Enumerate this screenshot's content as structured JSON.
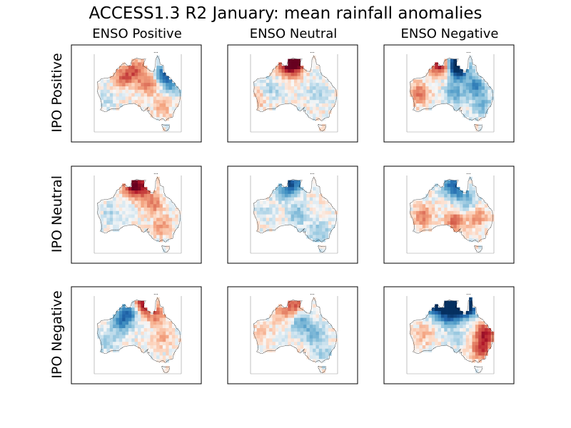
{
  "chart_data": {
    "type": "heatmap",
    "title": "ACCESS1.3 R2 January: mean rainfall anomalies",
    "column_titles": [
      "ENSO Positive",
      "ENSO Neutral",
      "ENSO Negative"
    ],
    "row_titles": [
      "IPO Positive",
      "IPO Neutral",
      "IPO Negative"
    ],
    "colormap": "RdBu",
    "colors": {
      "dry": "#b2182b",
      "wet": "#2166ac",
      "neutral": "#f7f7f7"
    },
    "panels": [
      {
        "row": "IPO Positive",
        "col": "ENSO Positive",
        "pattern": "dry interior, wet north-east Queensland coast",
        "hotspots": [
          {
            "lon": 132,
            "lat": -17,
            "v": -0.5
          },
          {
            "lon": 126,
            "lat": -20,
            "v": -0.45
          },
          {
            "lon": 138,
            "lat": -23,
            "v": -0.4
          },
          {
            "lon": 146,
            "lat": -18,
            "v": 0.7
          },
          {
            "lon": 150,
            "lat": -23,
            "v": 0.45
          },
          {
            "lon": 118,
            "lat": -30,
            "v": 0.1
          },
          {
            "lon": 145,
            "lat": -33,
            "v": -0.2
          }
        ]
      },
      {
        "row": "IPO Positive",
        "col": "ENSO Neutral",
        "pattern": "strong dry Top End, weak elsewhere",
        "hotspots": [
          {
            "lon": 131,
            "lat": -12.5,
            "v": -0.9
          },
          {
            "lon": 134,
            "lat": -13,
            "v": -0.8
          },
          {
            "lon": 130,
            "lat": -16,
            "v": -0.4
          },
          {
            "lon": 122,
            "lat": -25,
            "v": 0.2
          },
          {
            "lon": 145,
            "lat": -27,
            "v": 0.2
          },
          {
            "lon": 115,
            "lat": -30,
            "v": -0.2
          }
        ]
      },
      {
        "row": "IPO Positive",
        "col": "ENSO Negative",
        "pattern": "dry Top End patch, very wet Gulf and east",
        "hotspots": [
          {
            "lon": 128,
            "lat": -14,
            "v": -0.9
          },
          {
            "lon": 136,
            "lat": -13,
            "v": 0.95
          },
          {
            "lon": 137,
            "lat": -17,
            "v": 0.8
          },
          {
            "lon": 145,
            "lat": -24,
            "v": 0.55
          },
          {
            "lon": 135,
            "lat": -27,
            "v": 0.4
          },
          {
            "lon": 118,
            "lat": -27,
            "v": -0.4
          },
          {
            "lon": 148,
            "lat": -32,
            "v": 0.35
          }
        ]
      },
      {
        "row": "IPO Neutral",
        "col": "ENSO Positive",
        "pattern": "dry north, mild dry south-east",
        "hotspots": [
          {
            "lon": 130,
            "lat": -14,
            "v": -0.85
          },
          {
            "lon": 135,
            "lat": -15,
            "v": -0.6
          },
          {
            "lon": 140,
            "lat": -22,
            "v": -0.4
          },
          {
            "lon": 120,
            "lat": -27,
            "v": 0.15
          },
          {
            "lon": 145,
            "lat": -32,
            "v": -0.3
          }
        ]
      },
      {
        "row": "IPO Neutral",
        "col": "ENSO Neutral",
        "pattern": "wet Top End, near-neutral elsewhere",
        "hotspots": [
          {
            "lon": 132,
            "lat": -13,
            "v": 0.8
          },
          {
            "lon": 128,
            "lat": -17,
            "v": 0.3
          },
          {
            "lon": 135,
            "lat": -27,
            "v": 0.3
          },
          {
            "lon": 145,
            "lat": -35,
            "v": 0.3
          },
          {
            "lon": 118,
            "lat": -25,
            "v": 0.1
          }
        ]
      },
      {
        "row": "IPO Neutral",
        "col": "ENSO Negative",
        "pattern": "wet Top End, dry south and east",
        "hotspots": [
          {
            "lon": 133,
            "lat": -14,
            "v": 0.6
          },
          {
            "lon": 138,
            "lat": -17,
            "v": 0.4
          },
          {
            "lon": 120,
            "lat": -28,
            "v": -0.4
          },
          {
            "lon": 135,
            "lat": -30,
            "v": -0.45
          },
          {
            "lon": 146,
            "lat": -28,
            "v": -0.35
          },
          {
            "lon": 142,
            "lat": -22,
            "v": 0.25
          }
        ]
      },
      {
        "row": "IPO Negative",
        "col": "ENSO Positive",
        "pattern": "wet west of Top End, dry north-east",
        "hotspots": [
          {
            "lon": 128,
            "lat": -17,
            "v": 0.7
          },
          {
            "lon": 125,
            "lat": -22,
            "v": 0.45
          },
          {
            "lon": 136,
            "lat": -13,
            "v": -0.8
          },
          {
            "lon": 142,
            "lat": -18,
            "v": -0.4
          },
          {
            "lon": 145,
            "lat": -28,
            "v": -0.2
          },
          {
            "lon": 118,
            "lat": -30,
            "v": 0.2
          }
        ]
      },
      {
        "row": "IPO Negative",
        "col": "ENSO Neutral",
        "pattern": "dry north coast, wet interior",
        "hotspots": [
          {
            "lon": 133,
            "lat": -13,
            "v": -0.5
          },
          {
            "lon": 128,
            "lat": -17,
            "v": -0.3
          },
          {
            "lon": 136,
            "lat": -22,
            "v": 0.4
          },
          {
            "lon": 143,
            "lat": -27,
            "v": 0.35
          },
          {
            "lon": 118,
            "lat": -25,
            "v": -0.15
          },
          {
            "lon": 147,
            "lat": -35,
            "v": 0.2
          }
        ]
      },
      {
        "row": "IPO Negative",
        "col": "ENSO Negative",
        "pattern": "very wet northern band, dry Queensland coast",
        "hotspots": [
          {
            "lon": 126,
            "lat": -14,
            "v": 1.0
          },
          {
            "lon": 132,
            "lat": -13,
            "v": 1.0
          },
          {
            "lon": 138,
            "lat": -15,
            "v": 1.0
          },
          {
            "lon": 143,
            "lat": -14,
            "v": 0.9
          },
          {
            "lon": 132,
            "lat": -19,
            "v": 0.6
          },
          {
            "lon": 150,
            "lat": -26,
            "v": -0.75
          },
          {
            "lon": 148,
            "lat": -33,
            "v": -0.6
          },
          {
            "lon": 120,
            "lat": -27,
            "v": -0.2
          },
          {
            "lon": 136,
            "lat": -28,
            "v": 0.15
          }
        ]
      }
    ]
  }
}
